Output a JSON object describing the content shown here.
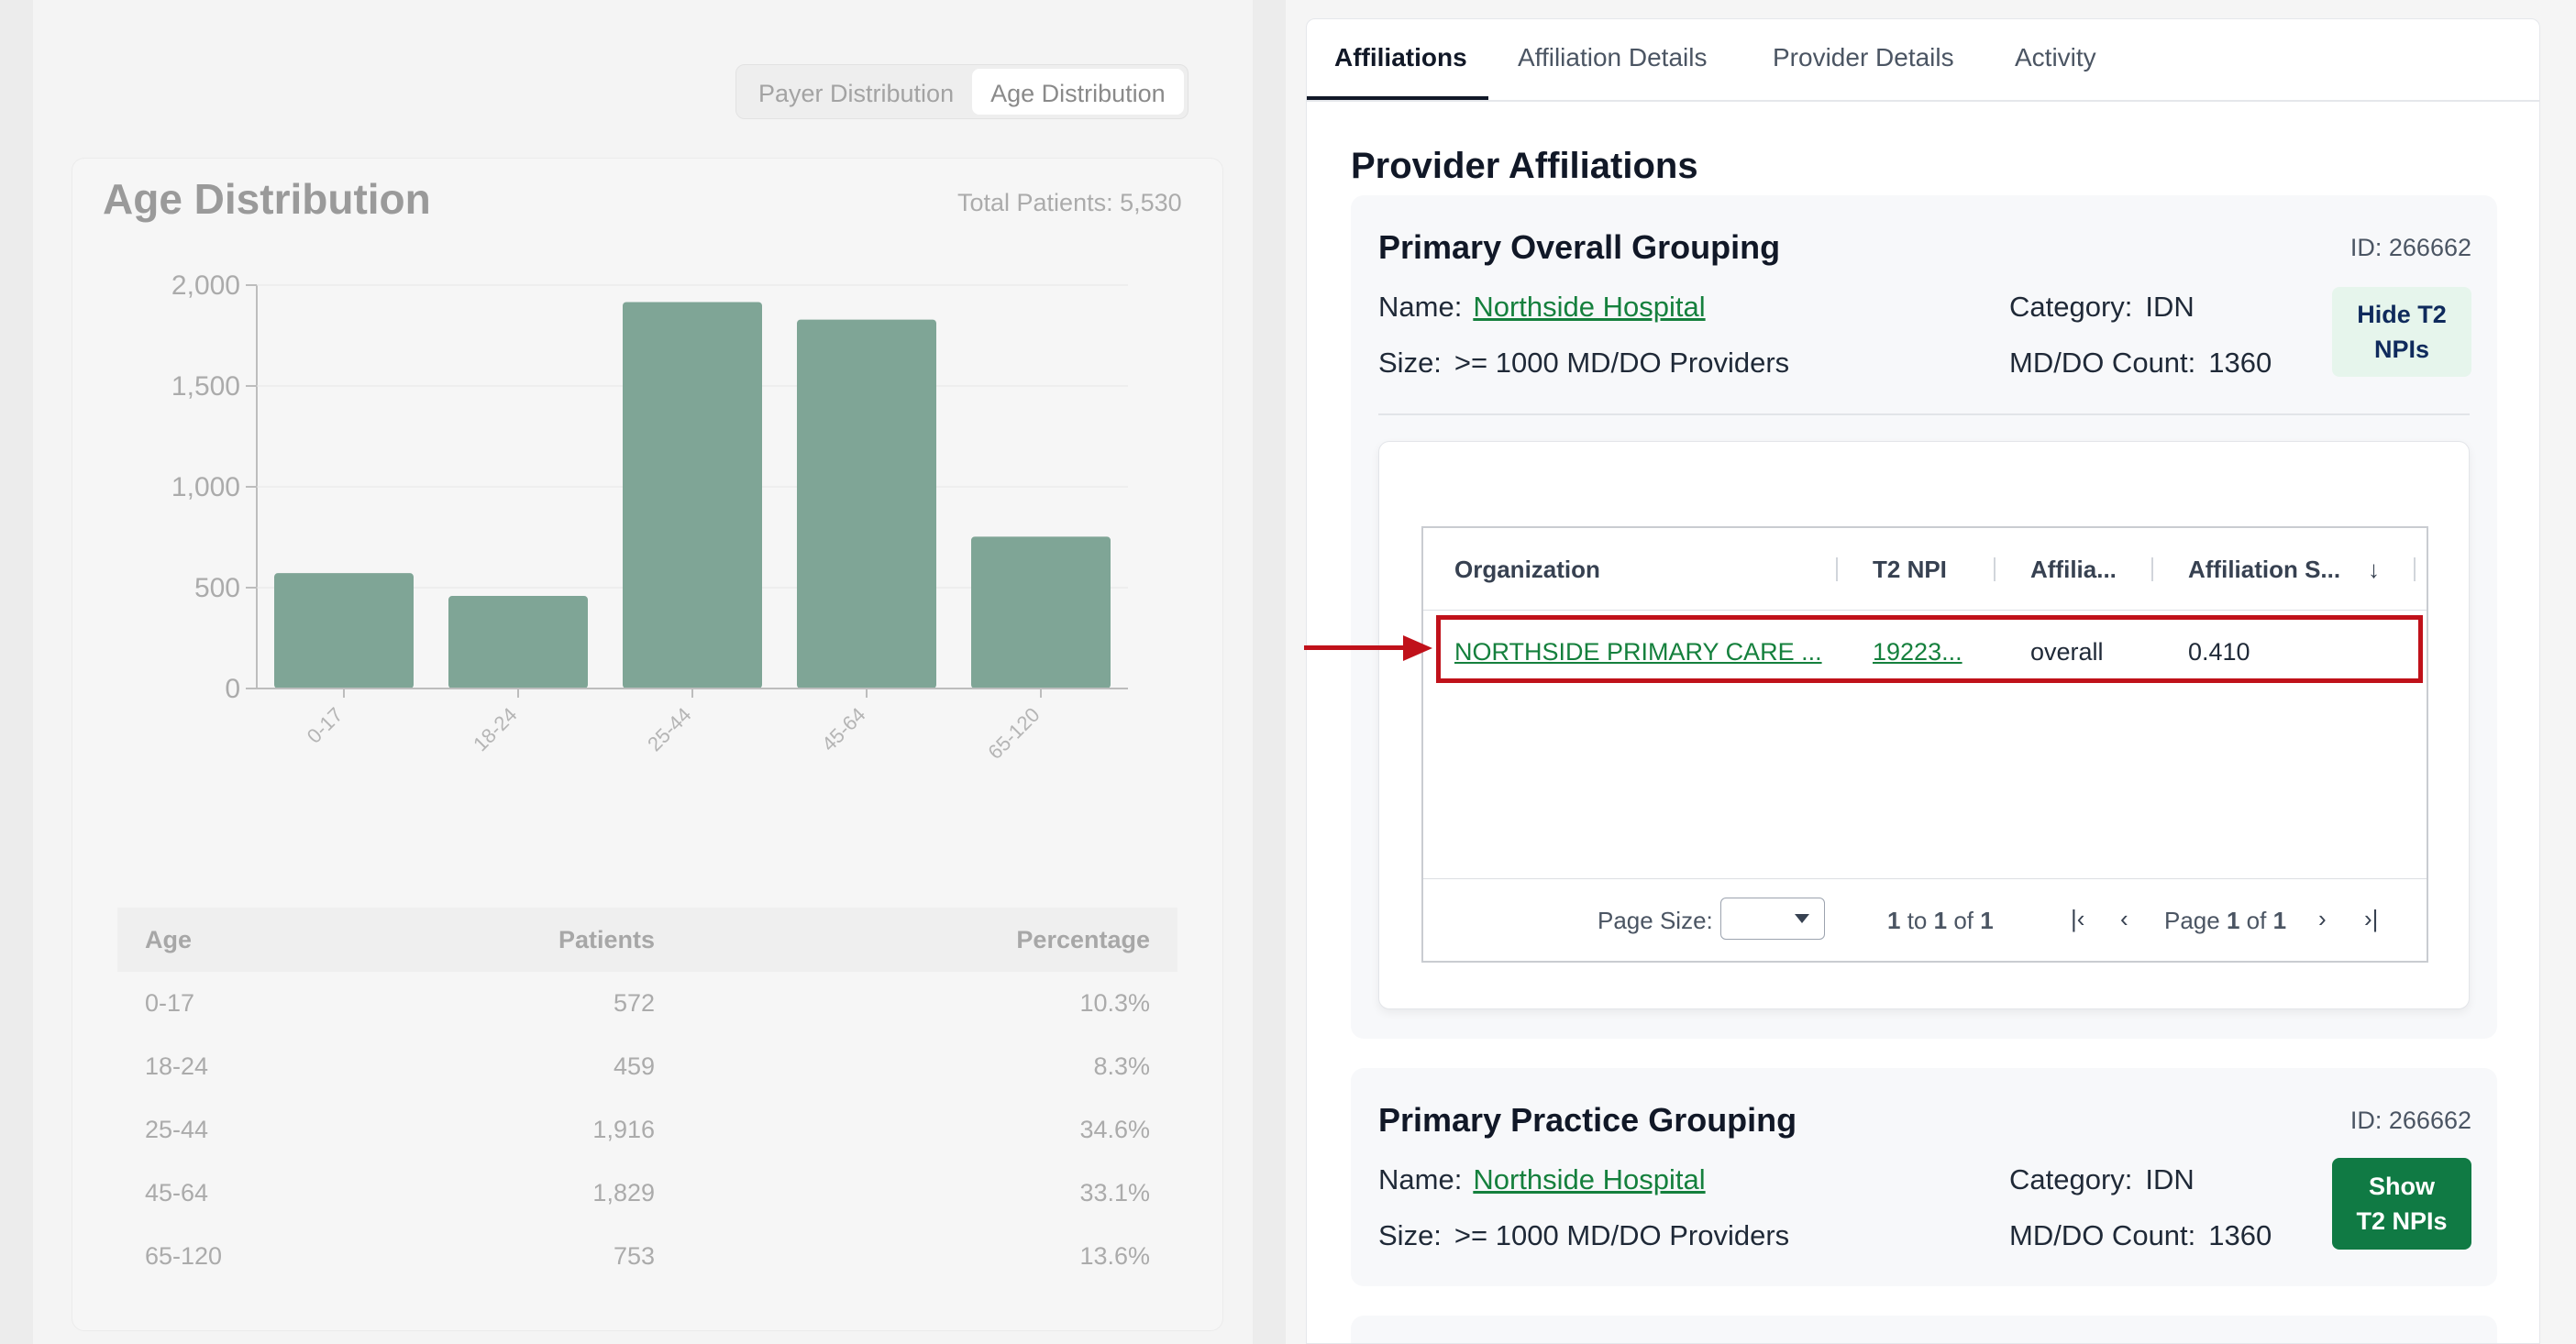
{
  "left_panel": {
    "toggle": [
      "Payer Distribution",
      "Age Distribution"
    ],
    "title": "Age Distribution",
    "total": "Total Patients: 5,530",
    "table": {
      "headers": [
        "Age",
        "Patients",
        "Percentage"
      ],
      "rows": [
        [
          "0-17",
          "572",
          "10.3%"
        ],
        [
          "18-24",
          "459",
          "8.3%"
        ],
        [
          "25-44",
          "1,916",
          "34.6%"
        ],
        [
          "45-64",
          "1,829",
          "33.1%"
        ],
        [
          "65-120",
          "753",
          "13.6%"
        ]
      ]
    }
  },
  "chart_data": {
    "type": "bar",
    "categories": [
      "0-17",
      "18-24",
      "25-44",
      "45-64",
      "65-120"
    ],
    "values": [
      572,
      459,
      1916,
      1829,
      753
    ],
    "yticks": [
      "0",
      "500",
      "1,000",
      "1,500",
      "2,000"
    ],
    "ylim": [
      0,
      2000
    ],
    "bar_color": "#7fa596"
  },
  "tabs": [
    "Affiliations",
    "Affiliation Details",
    "Provider Details",
    "Activity"
  ],
  "section_title": "Provider Affiliations",
  "groups": [
    {
      "title": "Primary Overall Grouping",
      "id": "ID: 266662",
      "name_label": "Name:",
      "name": "Northside Hospital",
      "size_label": "Size:",
      "size": ">= 1000 MD/DO Providers",
      "category_label": "Category:",
      "category": "IDN",
      "count_label": "MD/DO Count:",
      "count": "1360",
      "button_line1": "Hide T2",
      "button_line2": "NPIs"
    },
    {
      "title": "Primary Practice Grouping",
      "id": "ID: 266662",
      "name_label": "Name:",
      "name": "Northside Hospital",
      "size_label": "Size:",
      "size": ">= 1000 MD/DO Providers",
      "category_label": "Category:",
      "category": "IDN",
      "count_label": "MD/DO Count:",
      "count": "1360",
      "button_line1": "Show",
      "button_line2": "T2 NPIs"
    }
  ],
  "grid": {
    "headers": [
      "Organization",
      "T2 NPI",
      "Affilia...",
      "Affiliation S..."
    ],
    "sort_icon": "↓",
    "row": [
      "NORTHSIDE PRIMARY CARE ...",
      "19223...",
      "overall",
      "0.410"
    ],
    "footer": {
      "page_size_label": "Page Size:",
      "range_a": "1",
      "range_to": "to",
      "range_b": "1",
      "range_of": "of",
      "range_total": "1",
      "page_label": "Page",
      "page_current": "1",
      "page_of": "of",
      "page_total": "1"
    }
  },
  "annotation_color": "#c0111a"
}
